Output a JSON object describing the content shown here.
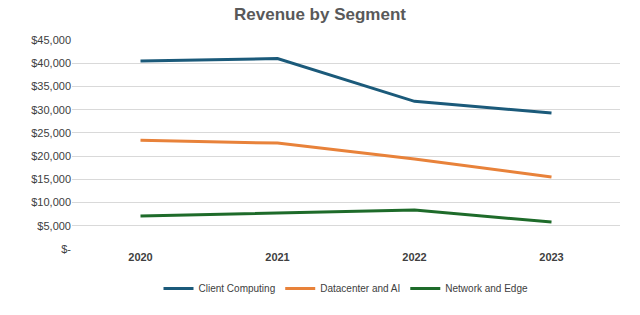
{
  "chart_data": {
    "type": "line",
    "title": "Revenue by Segment",
    "categories": [
      "2020",
      "2021",
      "2022",
      "2023"
    ],
    "series": [
      {
        "name": "Client Computing",
        "color": "#1b5a7a",
        "values": [
          40500,
          41000,
          31800,
          29300
        ]
      },
      {
        "name": "Datacenter and AI",
        "color": "#e8823a",
        "values": [
          23400,
          22800,
          19400,
          15500
        ]
      },
      {
        "name": "Network and Edge",
        "color": "#1e6b2a",
        "values": [
          7100,
          7700,
          8400,
          5800
        ]
      }
    ],
    "ylim": [
      0,
      45000
    ],
    "yticks": [
      {
        "value": 0,
        "label": "$-"
      },
      {
        "value": 5000,
        "label": "$5,000"
      },
      {
        "value": 10000,
        "label": "$10,000"
      },
      {
        "value": 15000,
        "label": "$15,000"
      },
      {
        "value": 20000,
        "label": "$20,000"
      },
      {
        "value": 25000,
        "label": "$25,000"
      },
      {
        "value": 30000,
        "label": "$30,000"
      },
      {
        "value": 35000,
        "label": "$35,000"
      },
      {
        "value": 40000,
        "label": "$40,000"
      },
      {
        "value": 45000,
        "label": "$45,000"
      }
    ],
    "grid": true,
    "legend": "bottom"
  }
}
